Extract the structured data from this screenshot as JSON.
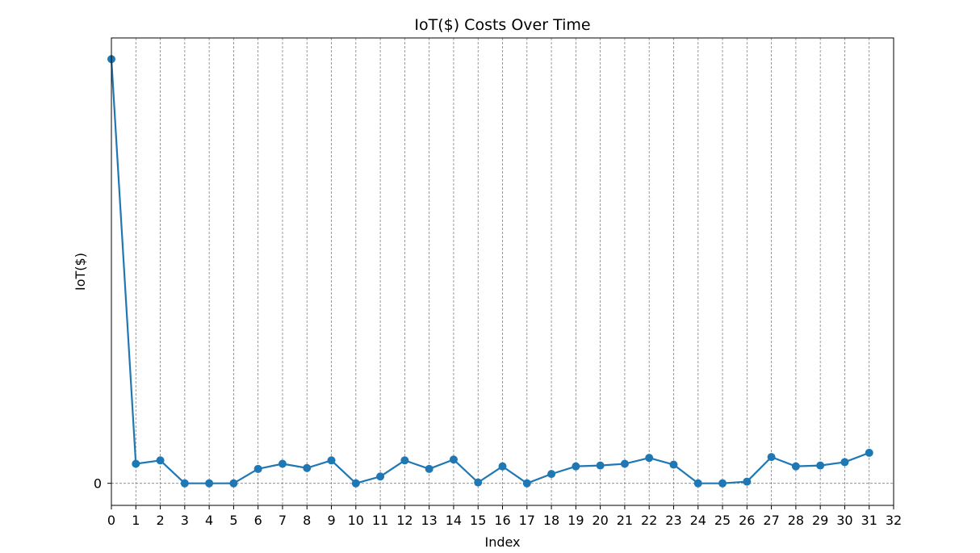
{
  "chart_data": {
    "type": "line",
    "title": "IoT($) Costs Over Time",
    "xlabel": "Index",
    "ylabel": "IoT($)",
    "x_ticks": [
      "0",
      "1",
      "2",
      "3",
      "4",
      "5",
      "6",
      "7",
      "8",
      "9",
      "10",
      "11",
      "12",
      "13",
      "14",
      "15",
      "16",
      "17",
      "18",
      "19",
      "20",
      "21",
      "22",
      "23",
      "24",
      "25",
      "26",
      "27",
      "28",
      "29",
      "30",
      "31",
      "32"
    ],
    "y_ticks": [
      "0"
    ],
    "xlim": [
      0,
      32
    ],
    "ylim": [
      -2.6,
      52.5
    ],
    "grid": {
      "x": true,
      "y": false,
      "y_zero_line": true
    },
    "legend": "none",
    "series": [
      {
        "x": [
          0,
          1,
          2,
          3,
          4,
          5,
          6,
          7,
          8,
          9,
          10,
          11,
          12,
          13,
          14,
          15,
          16,
          17,
          18,
          19,
          20,
          21,
          22,
          23,
          24,
          25,
          26,
          27,
          28,
          29,
          30,
          31
        ],
        "values": [
          50.0,
          2.3,
          2.7,
          0.0,
          0.0,
          0.0,
          1.7,
          2.3,
          1.8,
          2.7,
          0.0,
          0.8,
          2.7,
          1.7,
          2.8,
          0.1,
          2.0,
          0.0,
          1.1,
          2.0,
          2.1,
          2.3,
          3.0,
          2.2,
          0.0,
          0.0,
          0.2,
          3.1,
          2.0,
          2.1,
          2.5,
          3.6
        ],
        "color": "#1f77b4"
      }
    ]
  }
}
